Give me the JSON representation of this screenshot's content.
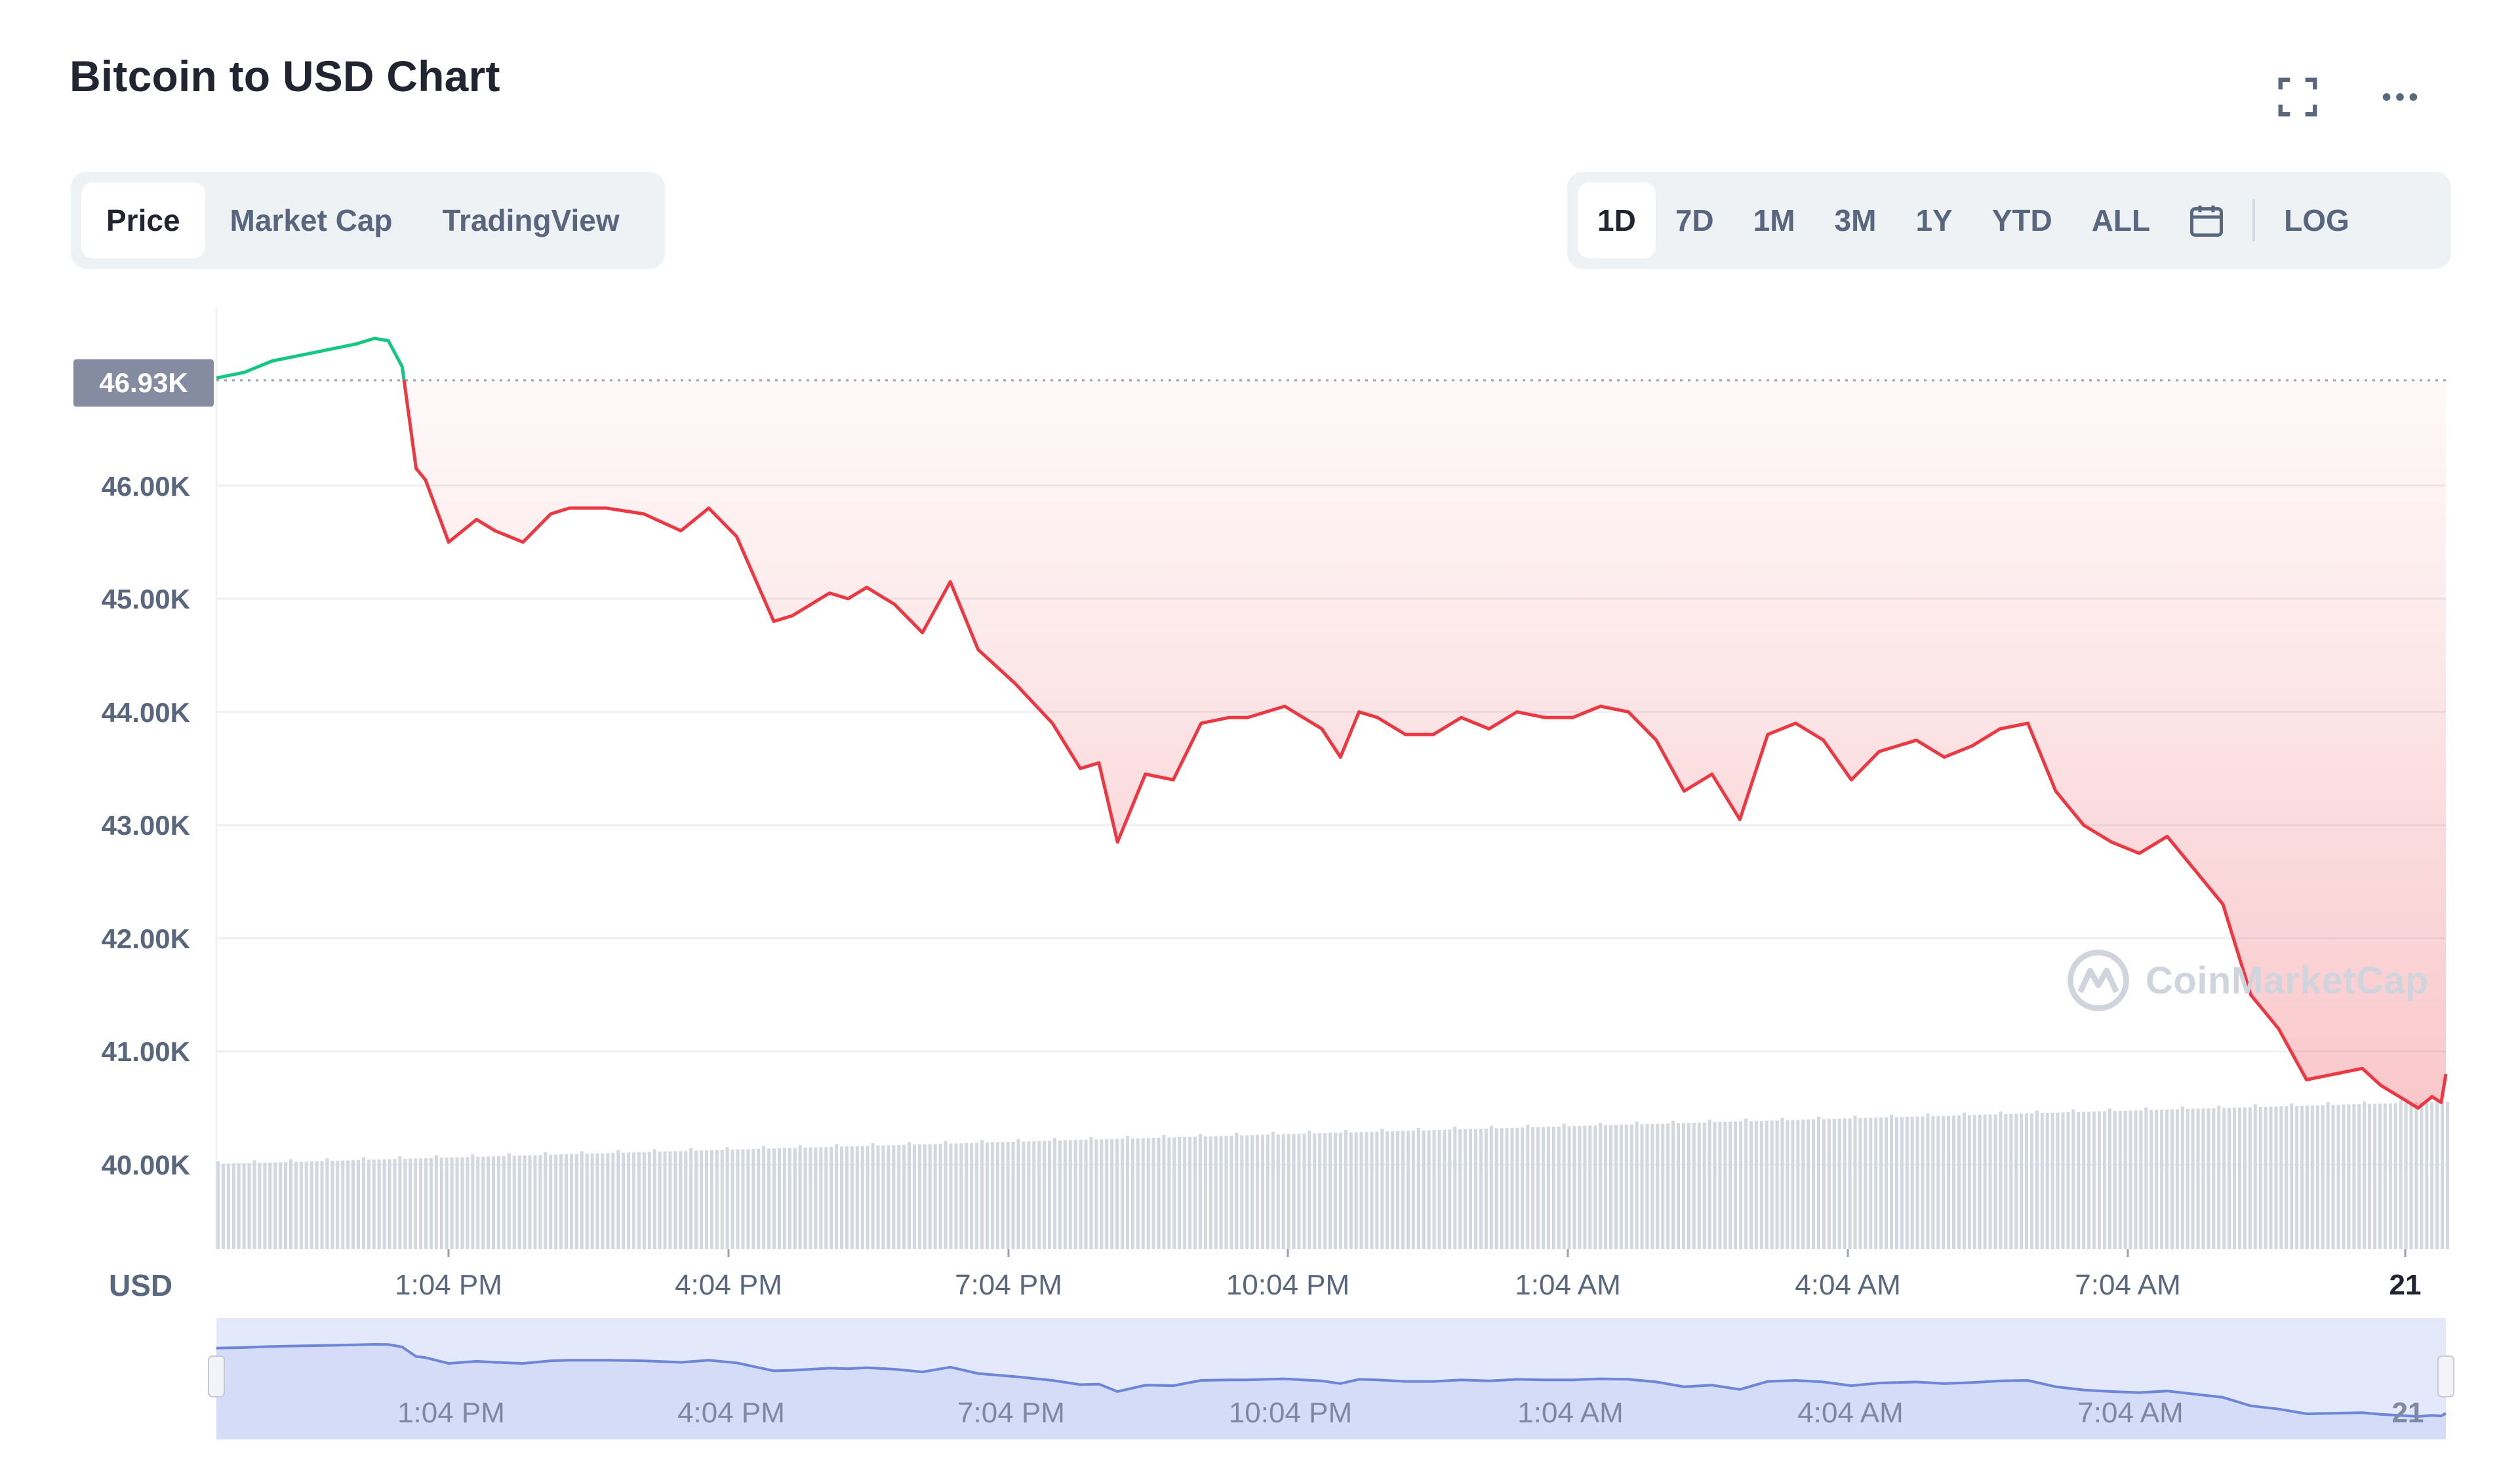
{
  "header": {
    "title": "Bitcoin to USD Chart",
    "fullscreen_icon": "expand-icon",
    "more_icon": "more-horizontal-icon"
  },
  "chart_tabs": [
    {
      "label": "Price",
      "active": true
    },
    {
      "label": "Market Cap",
      "active": false
    },
    {
      "label": "TradingView",
      "active": false
    }
  ],
  "range_tabs": [
    {
      "label": "1D",
      "active": true
    },
    {
      "label": "7D",
      "active": false
    },
    {
      "label": "1M",
      "active": false
    },
    {
      "label": "3M",
      "active": false
    },
    {
      "label": "1Y",
      "active": false
    },
    {
      "label": "YTD",
      "active": false
    },
    {
      "label": "ALL",
      "active": false
    }
  ],
  "calendar_icon": "calendar-icon",
  "log_label": "LOG",
  "current_price_tag": "46.93K",
  "currency": "USD",
  "watermark": "CoinMarketCap",
  "colors": {
    "up": "#16c784",
    "down": "#ea3943",
    "volume": "#d3d7df",
    "navigator_line": "#6e86d8",
    "navigator_fill": "#e3e8fb"
  },
  "chart_data": {
    "type": "line",
    "ylabels": [
      "46.00K",
      "45.00K",
      "44.00K",
      "43.00K",
      "42.00K",
      "41.00K",
      "40.00K"
    ],
    "ylim": [
      39.3,
      47.4
    ],
    "xlabels": [
      "1:04 PM",
      "4:04 PM",
      "7:04 PM",
      "10:04 PM",
      "1:04 AM",
      "4:04 AM",
      "7:04 AM",
      "21"
    ],
    "baseline": 46.93,
    "x_hours": [
      0,
      0.3,
      0.6,
      0.9,
      1.2,
      1.5,
      1.7,
      1.85,
      2.0,
      2.15,
      2.25,
      2.5,
      2.8,
      3.0,
      3.3,
      3.6,
      3.8,
      4.2,
      4.6,
      5.0,
      5.3,
      5.6,
      6.0,
      6.2,
      6.4,
      6.6,
      6.8,
      7.0,
      7.3,
      7.6,
      7.9,
      8.2,
      8.6,
      9.0,
      9.3,
      9.5,
      9.7,
      10.0,
      10.3,
      10.6,
      10.9,
      11.1,
      11.3,
      11.5,
      11.7,
      11.9,
      12.1,
      12.3,
      12.5,
      12.8,
      13.1,
      13.4,
      13.7,
      14.0,
      14.3,
      14.6,
      14.9,
      15.2,
      15.5,
      15.8,
      16.1,
      16.4,
      16.7,
      17.0,
      17.3,
      17.6,
      17.9,
      18.1,
      18.3,
      18.6,
      18.9,
      19.2,
      19.5,
      19.8,
      20.1,
      20.4,
      20.7,
      21.0,
      21.3,
      21.6,
      21.9,
      22.2,
      22.5,
      22.8,
      23.1,
      23.3,
      23.5,
      23.7,
      23.85,
      23.95,
      24.0
    ],
    "series": [
      {
        "values": [
          46.95,
          47.0,
          47.1,
          47.15,
          47.2,
          47.25,
          47.3,
          47.28,
          47.05,
          46.15,
          46.05,
          45.5,
          45.7,
          45.6,
          45.5,
          45.75,
          45.8,
          45.8,
          45.75,
          45.6,
          45.8,
          45.55,
          44.8,
          44.85,
          44.95,
          45.05,
          45.0,
          45.1,
          44.95,
          44.7,
          45.15,
          44.55,
          44.25,
          43.9,
          43.5,
          43.55,
          42.85,
          43.45,
          43.4,
          43.9,
          43.95,
          43.95,
          44.0,
          44.05,
          43.95,
          43.85,
          43.6,
          44.0,
          43.95,
          43.8,
          43.8,
          43.95,
          43.85,
          44.0,
          43.95,
          43.95,
          44.05,
          44.0,
          43.75,
          43.3,
          43.45,
          43.05,
          43.8,
          43.9,
          43.75,
          43.4,
          43.65,
          43.7,
          43.75,
          43.6,
          43.7,
          43.85,
          43.9,
          43.3,
          43.0,
          42.85,
          42.75,
          42.9,
          42.6,
          42.3,
          41.5,
          41.2,
          40.75,
          40.8,
          40.85,
          40.7,
          40.6,
          40.5,
          40.6,
          40.55,
          40.8
        ]
      }
    ],
    "grid": true
  }
}
